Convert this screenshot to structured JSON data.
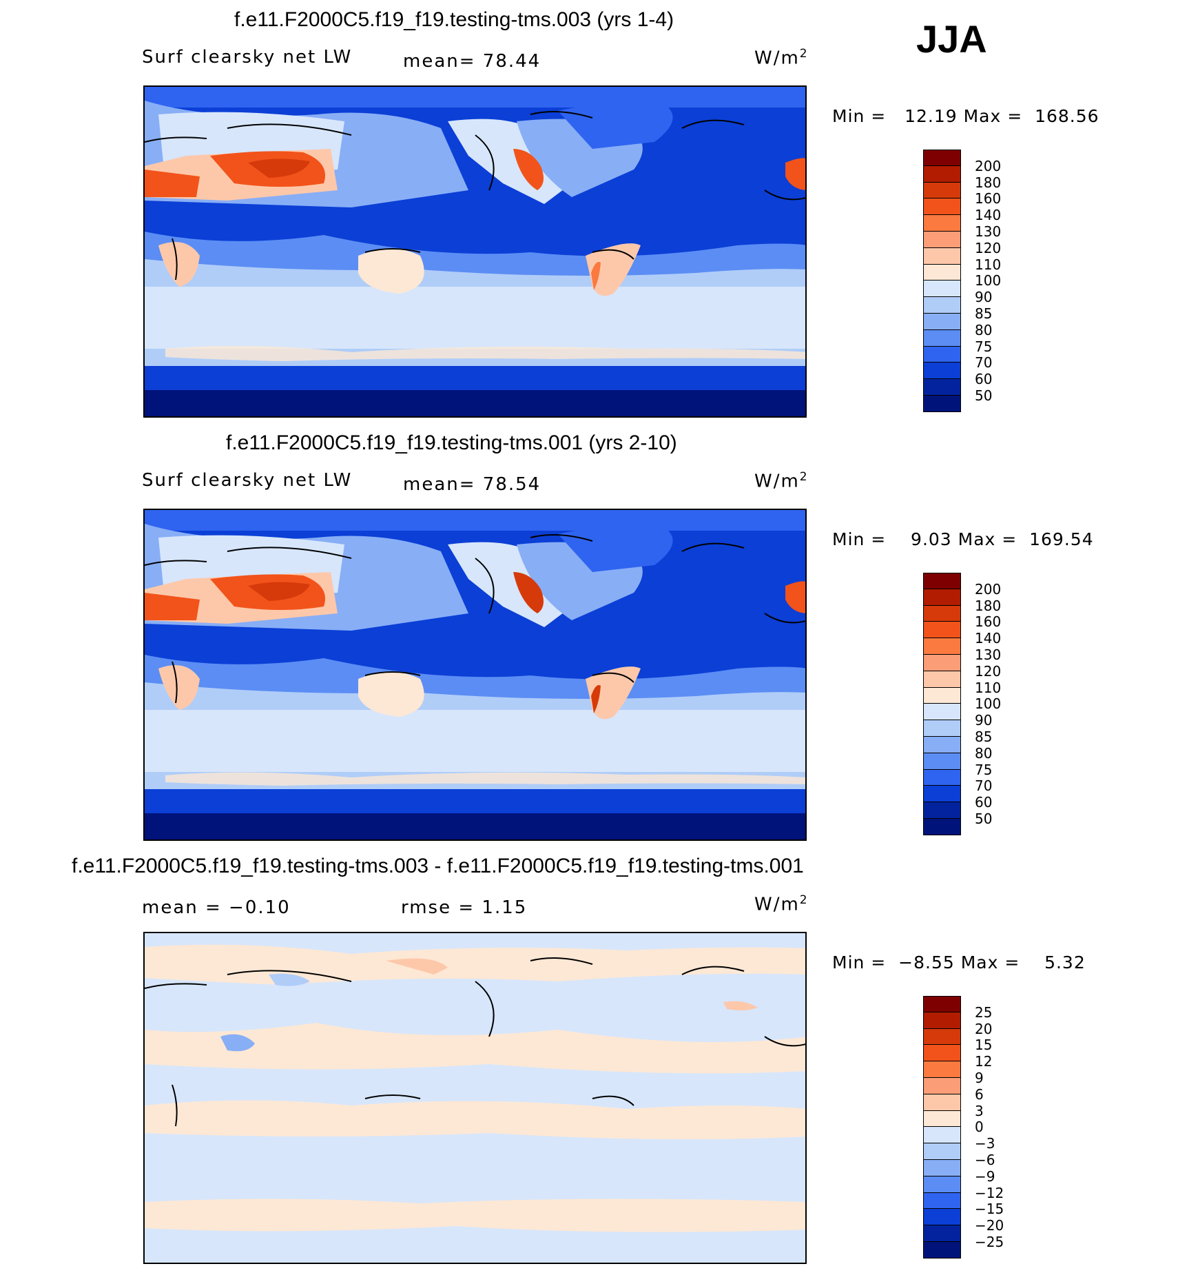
{
  "season": "JJA",
  "panels": [
    {
      "title": "f.e11.F2000C5.f19_f19.testing-tms.003 (yrs 1-4)",
      "left_label": "Surf clearsky net LW",
      "stat_text": "mean=  78.44",
      "units_base": "W/m",
      "units_exp": "2",
      "minmax_text": "Min =   12.19 Max =  168.56"
    },
    {
      "title": "f.e11.F2000C5.f19_f19.testing-tms.001 (yrs 2-10)",
      "left_label": "Surf clearsky net LW",
      "stat_text": "mean=  78.54",
      "units_base": "W/m",
      "units_exp": "2",
      "minmax_text": "Min =    9.03 Max =  169.54"
    },
    {
      "title": "f.e11.F2000C5.f19_f19.testing-tms.003 - f.e11.F2000C5.f19_f19.testing-tms.001",
      "left_label": "mean =  −0.10",
      "stat_text": "rmse =   1.15",
      "units_base": "W/m",
      "units_exp": "2",
      "minmax_text": "Min =  −8.55 Max =    5.32"
    }
  ],
  "colorbars": {
    "field": {
      "labels": [
        "200",
        "180",
        "160",
        "140",
        "130",
        "120",
        "110",
        "100",
        "90",
        "85",
        "80",
        "75",
        "70",
        "60",
        "50"
      ],
      "colors": [
        "#7f0000",
        "#b21c00",
        "#d63a0a",
        "#f2531a",
        "#fa7a40",
        "#fb9e78",
        "#fdc8aa",
        "#fde8d5",
        "#d7e6fb",
        "#b0cdf8",
        "#88aef6",
        "#5b8df4",
        "#2f64f0",
        "#0b3fd6",
        "#03239e",
        "#00137a"
      ]
    },
    "diff": {
      "labels": [
        "25",
        "20",
        "15",
        "12",
        "9",
        "6",
        "3",
        "0",
        "−3",
        "−6",
        "−9",
        "−12",
        "−15",
        "−20",
        "−25"
      ],
      "colors": [
        "#7f0000",
        "#b21c00",
        "#d63a0a",
        "#f2531a",
        "#fa7a40",
        "#fb9e78",
        "#fdc8aa",
        "#fde8d5",
        "#d7e6fb",
        "#b0cdf8",
        "#88aef6",
        "#5b8df4",
        "#2f64f0",
        "#0b3fd6",
        "#03239e",
        "#00137a"
      ]
    }
  },
  "chart_data": [
    {
      "type": "heatmap",
      "title": "f.e11.F2000C5.f19_f19.testing-tms.003 (yrs 1-4)",
      "variable": "Surf clearsky net LW",
      "units": "W/m2",
      "mean": 78.44,
      "min": 12.19,
      "max": 168.56,
      "contour_levels": [
        50,
        60,
        70,
        75,
        80,
        85,
        90,
        100,
        110,
        120,
        130,
        140,
        160,
        180,
        200
      ]
    },
    {
      "type": "heatmap",
      "title": "f.e11.F2000C5.f19_f19.testing-tms.001 (yrs 2-10)",
      "variable": "Surf clearsky net LW",
      "units": "W/m2",
      "mean": 78.54,
      "min": 9.03,
      "max": 169.54,
      "contour_levels": [
        50,
        60,
        70,
        75,
        80,
        85,
        90,
        100,
        110,
        120,
        130,
        140,
        160,
        180,
        200
      ]
    },
    {
      "type": "heatmap",
      "title": "f.e11.F2000C5.f19_f19.testing-tms.003 - f.e11.F2000C5.f19_f19.testing-tms.001",
      "units": "W/m2",
      "mean": -0.1,
      "rmse": 1.15,
      "min": -8.55,
      "max": 5.32,
      "contour_levels": [
        -25,
        -20,
        -15,
        -12,
        -9,
        -6,
        -3,
        0,
        3,
        6,
        9,
        12,
        15,
        20,
        25
      ]
    }
  ]
}
